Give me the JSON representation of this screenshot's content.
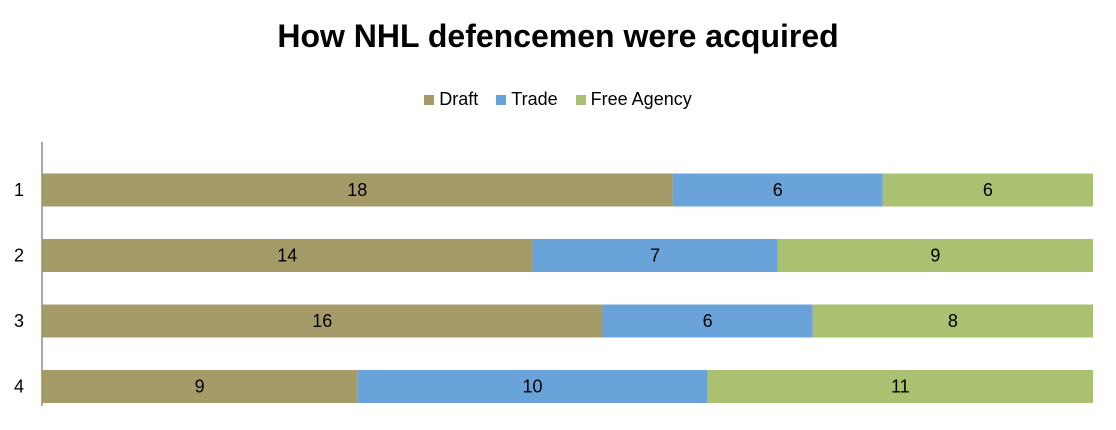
{
  "chart_data": {
    "type": "bar",
    "orientation": "horizontal",
    "stacked": true,
    "title": "How NHL defencemen were acquired",
    "xlabel": "",
    "ylabel": "",
    "categories": [
      "1",
      "2",
      "3",
      "4"
    ],
    "series": [
      {
        "name": "Draft",
        "color": "#a59b68",
        "values": [
          18,
          14,
          16,
          9
        ]
      },
      {
        "name": "Trade",
        "color": "#6aa3d9",
        "values": [
          6,
          7,
          6,
          10
        ]
      },
      {
        "name": "Free Agency",
        "color": "#a9c170",
        "values": [
          6,
          9,
          8,
          11
        ]
      }
    ],
    "legend_position": "top",
    "grid": false,
    "data_labels": true
  }
}
